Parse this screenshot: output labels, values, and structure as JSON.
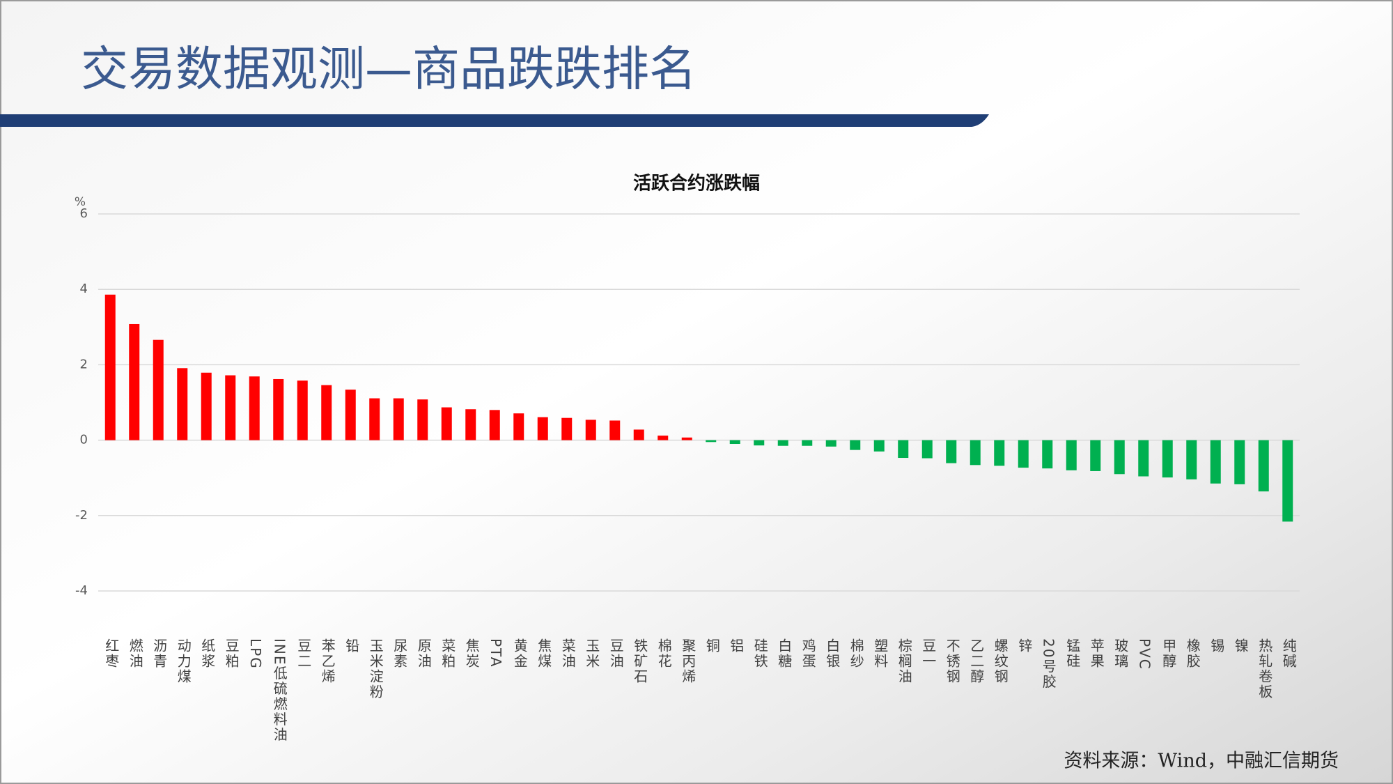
{
  "header": {
    "title": "交易数据观测—商品跌跌排名"
  },
  "chart_data": {
    "type": "bar",
    "title": "活跃合约涨跌幅",
    "y_label": "%",
    "categories": [
      "红枣",
      "燃油",
      "沥青",
      "动力煤",
      "纸浆",
      "豆粕",
      "LPG",
      "INE低硫燃料油",
      "豆二",
      "苯乙烯",
      "铅",
      "玉米淀粉",
      "尿素",
      "原油",
      "菜粕",
      "焦炭",
      "PTA",
      "黄金",
      "焦煤",
      "菜油",
      "玉米",
      "豆油",
      "铁矿石",
      "棉花",
      "聚丙烯",
      "铜",
      "铝",
      "硅铁",
      "白糖",
      "鸡蛋",
      "白银",
      "棉纱",
      "塑料",
      "棕榈油",
      "豆一",
      "不锈钢",
      "乙二醇",
      "螺纹钢",
      "锌",
      "20号胶",
      "锰硅",
      "苹果",
      "玻璃",
      "PVC",
      "甲醇",
      "橡胶",
      "锡",
      "镍",
      "热轧卷板",
      "纯碱"
    ],
    "values": [
      3.86,
      3.08,
      2.66,
      1.91,
      1.79,
      1.72,
      1.69,
      1.62,
      1.58,
      1.46,
      1.34,
      1.11,
      1.11,
      1.08,
      0.87,
      0.82,
      0.8,
      0.71,
      0.61,
      0.59,
      0.54,
      0.52,
      0.28,
      0.12,
      0.07,
      -0.05,
      -0.1,
      -0.14,
      -0.15,
      -0.15,
      -0.17,
      -0.26,
      -0.3,
      -0.47,
      -0.48,
      -0.61,
      -0.66,
      -0.68,
      -0.73,
      -0.75,
      -0.8,
      -0.82,
      -0.9,
      -0.96,
      -0.99,
      -1.04,
      -1.15,
      -1.17,
      -1.36,
      -2.16
    ],
    "positive_color": "#ff0000",
    "negative_color": "#00b050",
    "ylim": [
      -4,
      6
    ],
    "yticks": [
      -4,
      -2,
      0,
      2,
      4,
      6
    ],
    "grid": true
  },
  "footer": {
    "source": "资料来源：Wind，中融汇信期货"
  }
}
